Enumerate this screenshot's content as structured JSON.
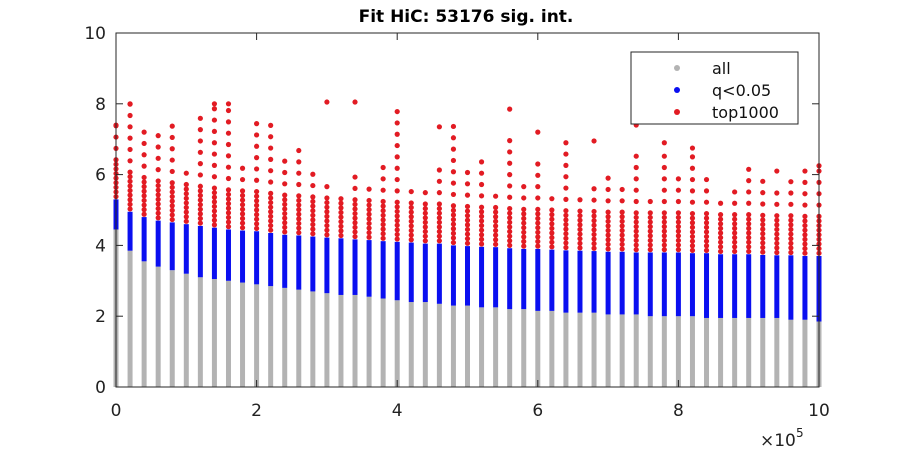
{
  "chart_data": {
    "type": "scatter",
    "title": "Fit HiC: 53176 sig. int.",
    "xlabel": "",
    "ylabel": "",
    "xlim": [
      0,
      1000000
    ],
    "ylim": [
      0,
      10
    ],
    "x_ticks": [
      0,
      200000,
      400000,
      600000,
      800000,
      1000000
    ],
    "x_tick_labels": [
      "0",
      "2",
      "4",
      "6",
      "8",
      "10"
    ],
    "x_exponent_label": "×10",
    "x_exponent_power": "5",
    "y_ticks": [
      0,
      2,
      4,
      6,
      8,
      10
    ],
    "y_tick_labels": [
      "0",
      "2",
      "4",
      "6",
      "8",
      "10"
    ],
    "grid": false,
    "legend_position": "top-right",
    "bin_width": 20000,
    "series": [
      {
        "name": "all",
        "color": "#b3b3b3",
        "description_of_shape": "dense vertical columns from 0 up to upper bound per distance bin",
        "upper": [
          4.45,
          3.85,
          3.55,
          3.4,
          3.3,
          3.2,
          3.1,
          3.05,
          3.0,
          2.95,
          2.9,
          2.85,
          2.8,
          2.75,
          2.7,
          2.65,
          2.6,
          2.6,
          2.55,
          2.5,
          2.45,
          2.4,
          2.4,
          2.35,
          2.3,
          2.3,
          2.25,
          2.25,
          2.2,
          2.2,
          2.15,
          2.15,
          2.1,
          2.1,
          2.1,
          2.05,
          2.05,
          2.05,
          2.0,
          2.0,
          2.0,
          2.0,
          1.95,
          1.95,
          1.95,
          1.95,
          1.95,
          1.95,
          1.9,
          1.9,
          1.85
        ]
      },
      {
        "name": "q<0.05",
        "color": "#0a0ff0",
        "upper": [
          5.3,
          4.95,
          4.8,
          4.7,
          4.65,
          4.6,
          4.55,
          4.5,
          4.45,
          4.42,
          4.4,
          4.35,
          4.3,
          4.28,
          4.25,
          4.22,
          4.2,
          4.17,
          4.15,
          4.12,
          4.1,
          4.08,
          4.05,
          4.05,
          4.0,
          3.98,
          3.96,
          3.95,
          3.92,
          3.9,
          3.9,
          3.88,
          3.86,
          3.85,
          3.84,
          3.82,
          3.82,
          3.8,
          3.8,
          3.8,
          3.8,
          3.78,
          3.78,
          3.75,
          3.75,
          3.75,
          3.73,
          3.72,
          3.72,
          3.7,
          3.7
        ]
      },
      {
        "name": "top1000",
        "color": "#e21b23",
        "upper": [
          7.4,
          8.0,
          7.5,
          7.2,
          7.6,
          6.2,
          7.8,
          8.0,
          8.0,
          6.2,
          7.6,
          7.4,
          6.6,
          7.0,
          6.2,
          5.8,
          5.6,
          6.2,
          5.7,
          6.4,
          8.0,
          5.6,
          5.5,
          6.3,
          7.4,
          6.3,
          6.6,
          5.7,
          7.0,
          5.8,
          6.4,
          5.6,
          7.2,
          5.4,
          5.6,
          6.0,
          5.7,
          6.6,
          5.4,
          6.8,
          6.0,
          6.7,
          6.0,
          5.5,
          5.8,
          6.2,
          5.9,
          5.6,
          5.5,
          6.2,
          6.2
        ],
        "outliers": [
          [
            0,
            7.4
          ],
          [
            20000,
            8.0
          ],
          [
            140000,
            8.0
          ],
          [
            160000,
            8.0
          ],
          [
            300000,
            8.05
          ],
          [
            340000,
            8.05
          ],
          [
            460000,
            7.35
          ],
          [
            560000,
            7.85
          ],
          [
            600000,
            7.2
          ],
          [
            680000,
            6.95
          ],
          [
            740000,
            7.4
          ],
          [
            780000,
            6.9
          ],
          [
            820000,
            6.75
          ],
          [
            940000,
            6.1
          ],
          [
            960000,
            5.8
          ],
          [
            1000000,
            6.25
          ]
        ]
      }
    ]
  }
}
